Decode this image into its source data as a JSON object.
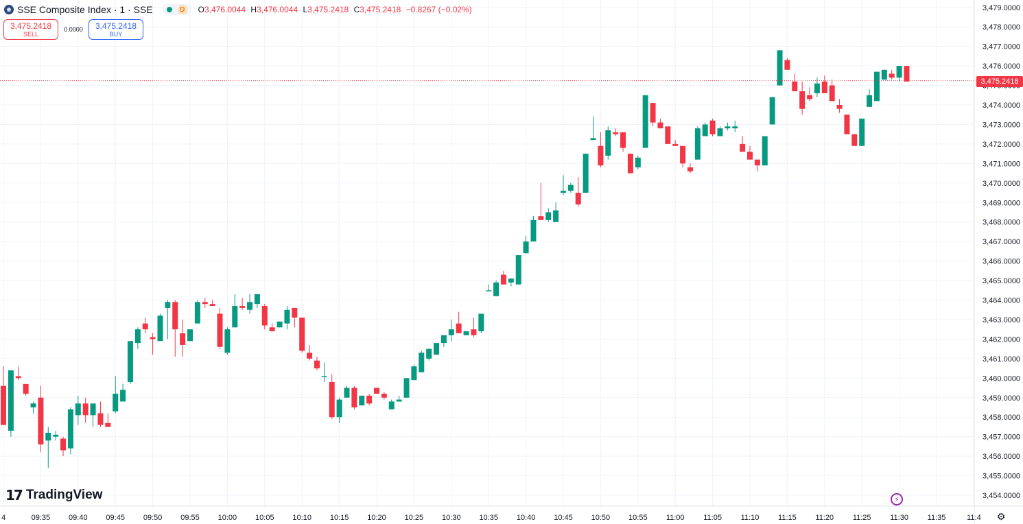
{
  "header": {
    "title": "SSE Composite Index · 1 · SSE",
    "status_badge": "D",
    "ohlc": {
      "o_label": "O",
      "o": "3,476.0044",
      "h_label": "H",
      "h": "3,476.0044",
      "l_label": "L",
      "l": "3,475.2418",
      "c_label": "C",
      "c": "3,475.2418",
      "change": "−0.8267 (−0.02%)"
    }
  },
  "trade": {
    "sell_price": "3,475.2418",
    "sell_label": "SELL",
    "spread": "0.0000",
    "buy_price": "3,475.2418",
    "buy_label": "BUY"
  },
  "branding": {
    "name": "TradingView"
  },
  "last_price_label": "3,475.2418",
  "colors": {
    "up": "#089981",
    "down": "#f23645",
    "grid": "#f0f3fa",
    "text": "#131722",
    "last_line": "#f23645"
  },
  "icons": {
    "flash": "flash-icon",
    "settings": "gear-icon",
    "logo": "tradingview-logo-icon"
  },
  "chart_data": {
    "type": "candlestick",
    "y_ticks": [
      "3,454.0000",
      "3,455.0000",
      "3,456.0000",
      "3,457.0000",
      "3,458.0000",
      "3,459.0000",
      "3,460.0000",
      "3,461.0000",
      "3,462.0000",
      "3,463.0000",
      "3,464.0000",
      "3,465.0000",
      "3,466.0000",
      "3,467.0000",
      "3,468.0000",
      "3,469.0000",
      "3,470.0000",
      "3,471.0000",
      "3,472.0000",
      "3,473.0000",
      "3,474.0000",
      "3,475.0000",
      "3,476.0000",
      "3,477.0000",
      "3,478.0000",
      "3,479.0000"
    ],
    "x_ticks": [
      "4",
      "09:35",
      "09:40",
      "09:45",
      "09:50",
      "09:55",
      "10:00",
      "10:05",
      "10:10",
      "10:15",
      "10:20",
      "10:25",
      "10:30",
      "10:35",
      "10:40",
      "10:45",
      "10:50",
      "10:55",
      "11:00",
      "11:05",
      "11:10",
      "11:15",
      "11:20",
      "11:25",
      "11:30",
      "11:35",
      "11:4"
    ],
    "ylim": [
      3453.6,
      3479.3
    ],
    "last_price": 3475.2418,
    "candles": [
      [
        3459.6,
        3460.6,
        3457.6,
        3457.6
      ],
      [
        3457.3,
        3460.4,
        3457.0,
        3460.4
      ],
      [
        3460.1,
        3460.6,
        3459.9,
        3460.0
      ],
      [
        3459.7,
        3459.7,
        3459.1,
        3459.2
      ],
      [
        3458.5,
        3458.8,
        3458.2,
        3458.7
      ],
      [
        3459.0,
        3459.6,
        3456.2,
        3456.6
      ],
      [
        3456.8,
        3457.5,
        3455.4,
        3457.2
      ],
      [
        3457.0,
        3457.3,
        3456.8,
        3457.1
      ],
      [
        3456.9,
        3457.0,
        3456.0,
        3456.3
      ],
      [
        3456.4,
        3458.5,
        3456.1,
        3458.4
      ],
      [
        3458.1,
        3459.1,
        3457.6,
        3458.7
      ],
      [
        3458.7,
        3459.0,
        3457.7,
        3458.1
      ],
      [
        3458.1,
        3458.5,
        3457.5,
        3458.7
      ],
      [
        3458.2,
        3458.8,
        3457.5,
        3457.6
      ],
      [
        3457.7,
        3458.2,
        3457.5,
        3457.5
      ],
      [
        3458.3,
        3460.1,
        3458.2,
        3459.2
      ],
      [
        3458.8,
        3459.7,
        3458.8,
        3459.4
      ],
      [
        3459.8,
        3461.9,
        3459.7,
        3461.9
      ],
      [
        3461.8,
        3462.6,
        3461.5,
        3462.5
      ],
      [
        3462.8,
        3463.1,
        3462.3,
        3462.5
      ],
      [
        3462.1,
        3462.3,
        3461.2,
        3462.0
      ],
      [
        3461.9,
        3463.3,
        3461.9,
        3463.2
      ],
      [
        3463.6,
        3464.0,
        3462.0,
        3463.9
      ],
      [
        3463.9,
        3464.0,
        3461.1,
        3462.5
      ],
      [
        3462.3,
        3463.0,
        3461.1,
        3461.7
      ],
      [
        3461.9,
        3462.5,
        3461.9,
        3462.5
      ],
      [
        3462.8,
        3464.0,
        3462.8,
        3463.9
      ],
      [
        3463.9,
        3464.1,
        3463.6,
        3463.8
      ],
      [
        3463.8,
        3464.0,
        3463.7,
        3463.7
      ],
      [
        3463.3,
        3463.6,
        3461.5,
        3461.6
      ],
      [
        3461.3,
        3462.6,
        3461.2,
        3462.5
      ],
      [
        3462.6,
        3464.3,
        3462.6,
        3463.7
      ],
      [
        3463.7,
        3464.1,
        3463.5,
        3463.6
      ],
      [
        3463.5,
        3464.3,
        3463.3,
        3463.9
      ],
      [
        3463.8,
        3464.3,
        3463.6,
        3464.3
      ],
      [
        3463.7,
        3463.8,
        3462.5,
        3462.7
      ],
      [
        3462.6,
        3462.8,
        3462.4,
        3462.4
      ],
      [
        3462.6,
        3462.9,
        3462.6,
        3462.9
      ],
      [
        3462.8,
        3463.7,
        3462.5,
        3463.5
      ],
      [
        3463.6,
        3463.6,
        3462.6,
        3463.1
      ],
      [
        3463.1,
        3463.1,
        3461.3,
        3461.4
      ],
      [
        3461.3,
        3461.7,
        3460.9,
        3461.0
      ],
      [
        3460.9,
        3461.1,
        3460.4,
        3460.5
      ],
      [
        3460.1,
        3460.8,
        3459.8,
        3460.1
      ],
      [
        3459.8,
        3460.2,
        3457.9,
        3458.0
      ],
      [
        3458.0,
        3459.0,
        3457.7,
        3458.9
      ],
      [
        3459.0,
        3459.6,
        3459.0,
        3459.5
      ],
      [
        3459.5,
        3459.6,
        3458.4,
        3458.5
      ],
      [
        3458.6,
        3459.0,
        3458.6,
        3459.1
      ],
      [
        3459.1,
        3459.2,
        3458.6,
        3458.7
      ],
      [
        3459.5,
        3459.5,
        3459.2,
        3459.2
      ],
      [
        3459.2,
        3459.3,
        3458.9,
        3459.0
      ],
      [
        3458.4,
        3458.9,
        3458.4,
        3458.8
      ],
      [
        3458.8,
        3459.1,
        3458.8,
        3458.9
      ],
      [
        3459.0,
        3460.0,
        3459.0,
        3460.0
      ],
      [
        3459.9,
        3460.7,
        3459.9,
        3460.6
      ],
      [
        3460.3,
        3461.4,
        3460.3,
        3461.3
      ],
      [
        3461.0,
        3461.5,
        3460.9,
        3461.5
      ],
      [
        3461.2,
        3461.8,
        3461.2,
        3461.8
      ],
      [
        3461.8,
        3462.1,
        3461.6,
        3462.2
      ],
      [
        3462.2,
        3463.0,
        3461.9,
        3462.5
      ],
      [
        3462.8,
        3463.4,
        3462.3,
        3462.3
      ],
      [
        3462.2,
        3462.3,
        3462.2,
        3462.4
      ],
      [
        3462.5,
        3463.1,
        3462.1,
        3462.2
      ],
      [
        3462.4,
        3463.3,
        3462.3,
        3463.3
      ],
      [
        3464.5,
        3464.8,
        3464.5,
        3464.5
      ],
      [
        3464.2,
        3465.0,
        3464.2,
        3464.9
      ],
      [
        3465.3,
        3465.5,
        3464.8,
        3464.8
      ],
      [
        3464.9,
        3465.1,
        3464.7,
        3465.1
      ],
      [
        3464.8,
        3466.3,
        3464.8,
        3466.3
      ],
      [
        3466.4,
        3467.3,
        3466.4,
        3467.0
      ],
      [
        3467.0,
        3468.3,
        3467.0,
        3468.1
      ],
      [
        3468.3,
        3470.0,
        3468.1,
        3468.1
      ],
      [
        3468.1,
        3468.7,
        3468.0,
        3468.5
      ],
      [
        3468.0,
        3469.0,
        3468.0,
        3468.6
      ],
      [
        3469.5,
        3470.4,
        3469.4,
        3469.6
      ],
      [
        3469.6,
        3470.0,
        3469.5,
        3469.9
      ],
      [
        3469.5,
        3470.3,
        3468.8,
        3468.9
      ],
      [
        3469.5,
        3471.5,
        3469.5,
        3471.5
      ],
      [
        3472.2,
        3473.4,
        3472.2,
        3472.3
      ],
      [
        3471.9,
        3472.6,
        3470.8,
        3470.9
      ],
      [
        3471.4,
        3472.9,
        3471.2,
        3472.7
      ],
      [
        3472.6,
        3472.8,
        3472.4,
        3472.5
      ],
      [
        3472.6,
        3472.6,
        3471.6,
        3471.8
      ],
      [
        3471.5,
        3471.5,
        3470.5,
        3470.5
      ],
      [
        3470.8,
        3471.4,
        3470.7,
        3471.3
      ],
      [
        3471.8,
        3474.5,
        3471.8,
        3474.5
      ],
      [
        3474.1,
        3474.1,
        3472.9,
        3473.1
      ],
      [
        3473.1,
        3473.3,
        3472.8,
        3472.8
      ],
      [
        3472.9,
        3472.9,
        3472.0,
        3472.0
      ],
      [
        3472.0,
        3472.2,
        3471.9,
        3471.9
      ],
      [
        3471.9,
        3471.9,
        3470.8,
        3471.0
      ],
      [
        3470.8,
        3471.0,
        3470.5,
        3470.6
      ],
      [
        3471.2,
        3472.9,
        3471.2,
        3472.8
      ],
      [
        3472.4,
        3473.1,
        3472.4,
        3473.0
      ],
      [
        3473.2,
        3473.3,
        3472.4,
        3472.5
      ],
      [
        3472.4,
        3472.9,
        3472.4,
        3472.8
      ],
      [
        3472.8,
        3473.1,
        3472.7,
        3472.9
      ],
      [
        3472.8,
        3473.2,
        3472.6,
        3472.9
      ],
      [
        3472.0,
        3472.4,
        3471.7,
        3471.6
      ],
      [
        3471.6,
        3471.9,
        3471.2,
        3471.2
      ],
      [
        3471.2,
        3471.2,
        3470.6,
        3470.9
      ],
      [
        3470.9,
        3472.4,
        3470.9,
        3472.4
      ],
      [
        3473.0,
        3474.4,
        3473.0,
        3474.4
      ],
      [
        3475.0,
        3476.8,
        3475.0,
        3476.8
      ],
      [
        3476.3,
        3476.4,
        3475.8,
        3475.8
      ],
      [
        3475.2,
        3475.6,
        3474.8,
        3474.7
      ],
      [
        3474.7,
        3475.2,
        3473.5,
        3473.8
      ],
      [
        3474.5,
        3474.9,
        3474.2,
        3474.3
      ],
      [
        3474.6,
        3475.4,
        3474.4,
        3475.1
      ],
      [
        3475.2,
        3475.5,
        3474.6,
        3474.6
      ],
      [
        3475.0,
        3475.3,
        3474.2,
        3474.2
      ],
      [
        3474.0,
        3474.3,
        3473.6,
        3473.8
      ],
      [
        3473.5,
        3473.5,
        3472.5,
        3472.5
      ],
      [
        3472.5,
        3472.5,
        3471.9,
        3471.9
      ],
      [
        3471.9,
        3473.3,
        3471.9,
        3473.3
      ],
      [
        3473.9,
        3474.8,
        3473.9,
        3474.5
      ],
      [
        3474.2,
        3475.7,
        3474.2,
        3475.7
      ],
      [
        3475.3,
        3475.8,
        3475.3,
        3475.8
      ],
      [
        3475.6,
        3475.8,
        3475.3,
        3475.4
      ],
      [
        3475.4,
        3476.0,
        3475.2,
        3476.0
      ],
      [
        3476.0,
        3476.0,
        3475.2,
        3475.2
      ]
    ]
  }
}
